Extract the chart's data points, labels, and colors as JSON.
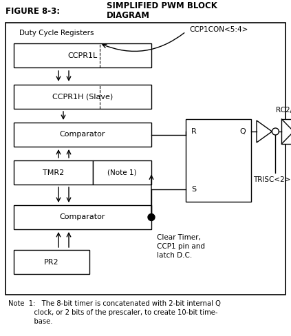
{
  "fig_w": 4.23,
  "fig_h": 4.88,
  "dpi": 100,
  "bg_color": "#ffffff",
  "title_left": "FIGURE 8-3:",
  "title_right": "SIMPLIFIED PWM BLOCK\nDIAGRAM",
  "note_text": "Note  1:   The 8-bit timer is concatenated with 2-bit internal Q\n            clock, or 2 bits of the prescaler, to create 10-bit time-\n            base.",
  "lw": 1.0
}
